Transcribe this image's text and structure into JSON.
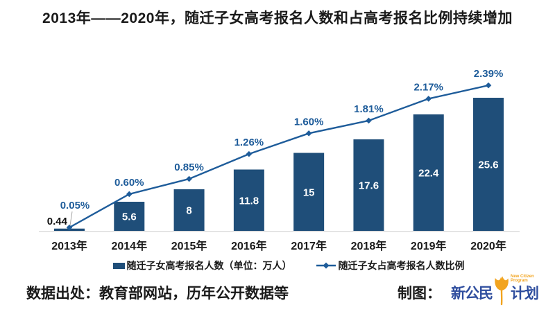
{
  "title": "2013年——2020年，随迁子女高考报名人数和占高考报名比例持续增加",
  "chart_data": {
    "type": "bar+line combo",
    "categories": [
      "2013年",
      "2014年",
      "2015年",
      "2016年",
      "2017年",
      "2018年",
      "2019年",
      "2020年"
    ],
    "series": [
      {
        "name": "随迁子女高考报名人数（单位：万人）",
        "type": "bar",
        "values": [
          0.44,
          5.6,
          8,
          11.8,
          15,
          17.6,
          22.4,
          25.6
        ],
        "labels": [
          "0.44",
          "5.6",
          "8",
          "11.8",
          "15",
          "17.6",
          "22.4",
          "25.6"
        ],
        "color": "#1F4E79",
        "label_color_inside": "#ffffff",
        "label_color_outside": "#111111"
      },
      {
        "name": "随迁子女占高考报名人数比例",
        "type": "line",
        "values": [
          0.05,
          0.6,
          0.85,
          1.26,
          1.6,
          1.81,
          2.17,
          2.39
        ],
        "labels": [
          "0.05%",
          "0.60%",
          "0.85%",
          "1.26%",
          "1.60%",
          "1.81%",
          "2.17%",
          "2.39%"
        ],
        "color": "#1E5C9A",
        "marker": "diamond"
      }
    ],
    "grid": false,
    "value_axes_hidden": true,
    "bar_axis_range": [
      0,
      26
    ],
    "pct_axis_range": [
      0,
      2.6
    ],
    "legend_position": "bottom",
    "axis_line_color": "#D9D9D9",
    "leader_line_color": "#A6A6A6",
    "x_label_color": "#1a1a1a"
  },
  "footer": {
    "source": "数据出处：教育部网站，历年公开数据等",
    "credit_label": "制图：",
    "logo": {
      "zh_left": "新公民",
      "zh_right": "计划",
      "en_line1": "New Citizen",
      "en_line2": "Program",
      "blue": "#2E4D9E",
      "orange": "#F2A41F"
    }
  }
}
